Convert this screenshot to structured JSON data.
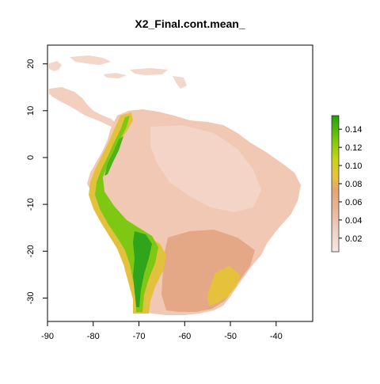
{
  "title": "X2_Final.cont.mean_",
  "x_axis": {
    "min": -90,
    "max": -32,
    "ticks": [
      -90,
      -80,
      -70,
      -60,
      -50,
      -40
    ]
  },
  "y_axis": {
    "min": -35,
    "max": 24,
    "ticks": [
      -30,
      -20,
      -10,
      0,
      10,
      20
    ]
  },
  "legend": {
    "min": 0.005,
    "max": 0.155,
    "ticks": [
      "0.02",
      "0.04",
      "0.06",
      "0.08",
      "0.10",
      "0.12",
      "0.14"
    ],
    "tick_values": [
      0.02,
      0.04,
      0.06,
      0.08,
      0.1,
      0.12,
      0.14
    ],
    "colors": [
      "#f7e6e2",
      "#eed2c6",
      "#e8b79b",
      "#e3a572",
      "#e6c33e",
      "#c6d415",
      "#7cc90a",
      "#1ea20b"
    ]
  },
  "colors": {
    "land_base": "#f0c8b4",
    "land_light": "#f3d5c8",
    "southeast": "#e4a886",
    "mid_band": "#e5c13c",
    "andes_green": "#7ec814",
    "andes_peak": "#2fa51c"
  }
}
